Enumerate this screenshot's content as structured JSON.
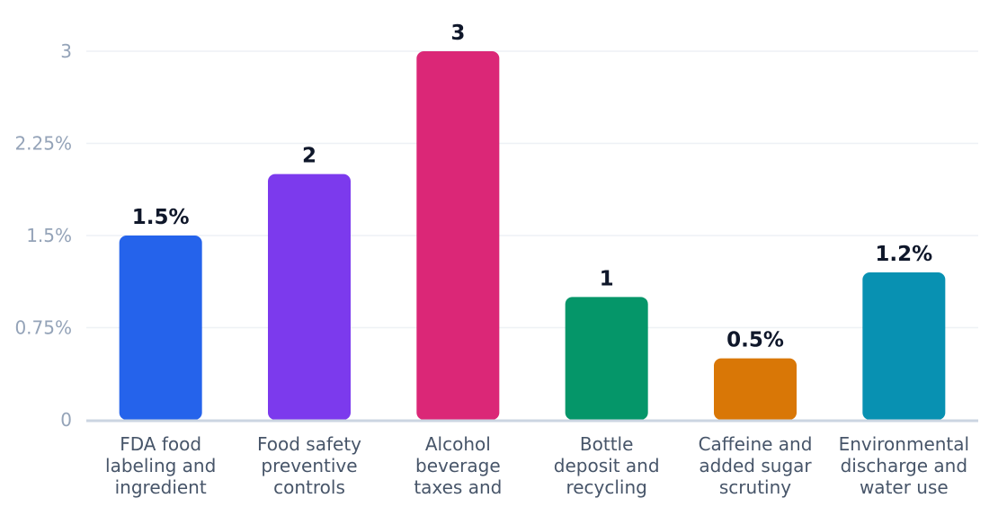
{
  "chart_data": {
    "type": "bar",
    "categories": [
      [
        "FDA food",
        "labeling and",
        "ingredient"
      ],
      [
        "Food safety",
        "preventive",
        "controls"
      ],
      [
        "Alcohol",
        "beverage",
        "taxes and"
      ],
      [
        "Bottle",
        "deposit and",
        "recycling"
      ],
      [
        "Caffeine and",
        "added sugar",
        "scrutiny"
      ],
      [
        "Environmental",
        "discharge and",
        "water use"
      ]
    ],
    "values": [
      1.5,
      2,
      3,
      1,
      0.5,
      1.2
    ],
    "data_labels": [
      "1.5%",
      "2",
      "3",
      "1",
      "0.5%",
      "1.2%"
    ],
    "colors": [
      "#2563eb",
      "#7c3aed",
      "#db2777",
      "#059669",
      "#d97706",
      "#0891b2"
    ],
    "y_ticks": [
      0,
      0.75,
      1.5,
      2.25,
      3
    ],
    "y_tick_labels": [
      "0",
      "0.75%",
      "1.5%",
      "2.25%",
      "3"
    ],
    "ylim": [
      0,
      3
    ],
    "grid": true,
    "legend": "none"
  }
}
